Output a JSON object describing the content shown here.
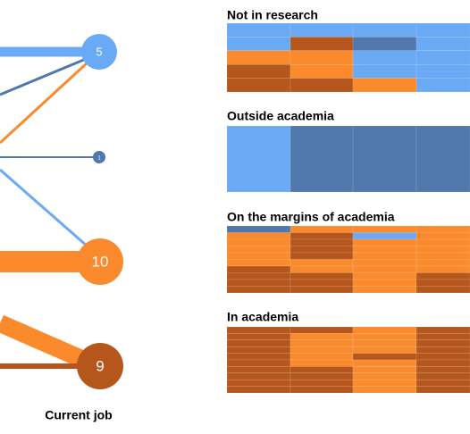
{
  "nodes": [
    {
      "label": "5"
    },
    {
      "label": "1"
    },
    {
      "label": "10"
    },
    {
      "label": "9"
    }
  ],
  "axis_label": "Current job",
  "groups": [
    {
      "title": "Not in research"
    },
    {
      "title": "Outside academia"
    },
    {
      "title": "On the margins of academia"
    },
    {
      "title": "In academia"
    }
  ]
}
